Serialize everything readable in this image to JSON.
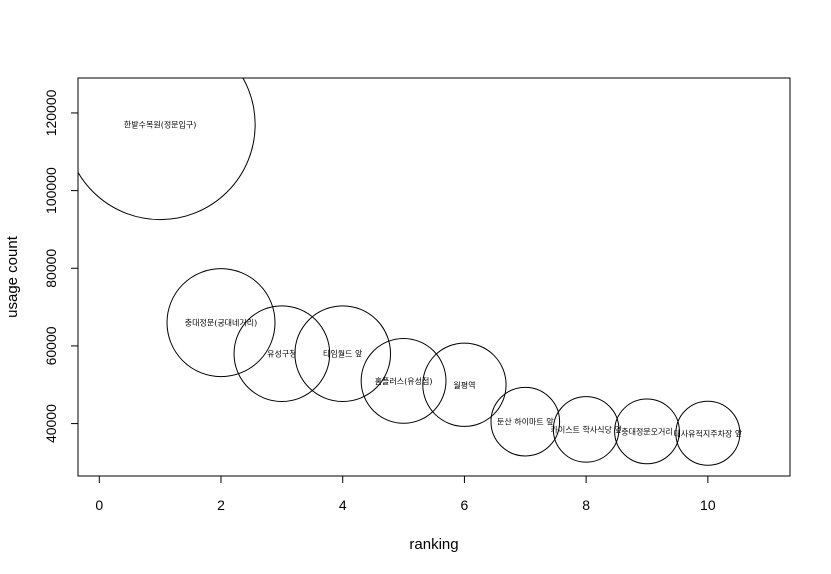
{
  "chart_data": {
    "type": "scatter",
    "title": "",
    "xlabel": "ranking",
    "ylabel": "usage count",
    "xlim": [
      -0.35,
      11.35
    ],
    "ylim": [
      26500,
      129000
    ],
    "x_ticks": [
      0,
      2,
      4,
      6,
      8,
      10
    ],
    "y_ticks": [
      40000,
      60000,
      80000,
      100000,
      120000
    ],
    "grid": false,
    "legend": "none",
    "points": [
      {
        "x": 1,
        "y": 117000,
        "label": "한밭수목원(정문입구)"
      },
      {
        "x": 2,
        "y": 66000,
        "label": "충대정문(궁대네거리)"
      },
      {
        "x": 3,
        "y": 58000,
        "label": "유성구청"
      },
      {
        "x": 4,
        "y": 58000,
        "label": "타임월드 앞"
      },
      {
        "x": 5,
        "y": 51000,
        "label": "홈플러스(유성점)"
      },
      {
        "x": 6,
        "y": 50000,
        "label": "월평역"
      },
      {
        "x": 7,
        "y": 40500,
        "label": "둔산 하이마트 앞"
      },
      {
        "x": 8,
        "y": 38500,
        "label": "카이스트 학사식당 옆"
      },
      {
        "x": 9,
        "y": 38000,
        "label": "충대정문오거리"
      },
      {
        "x": 10,
        "y": 37500,
        "label": "대사유적지주차장 앞"
      }
    ]
  }
}
